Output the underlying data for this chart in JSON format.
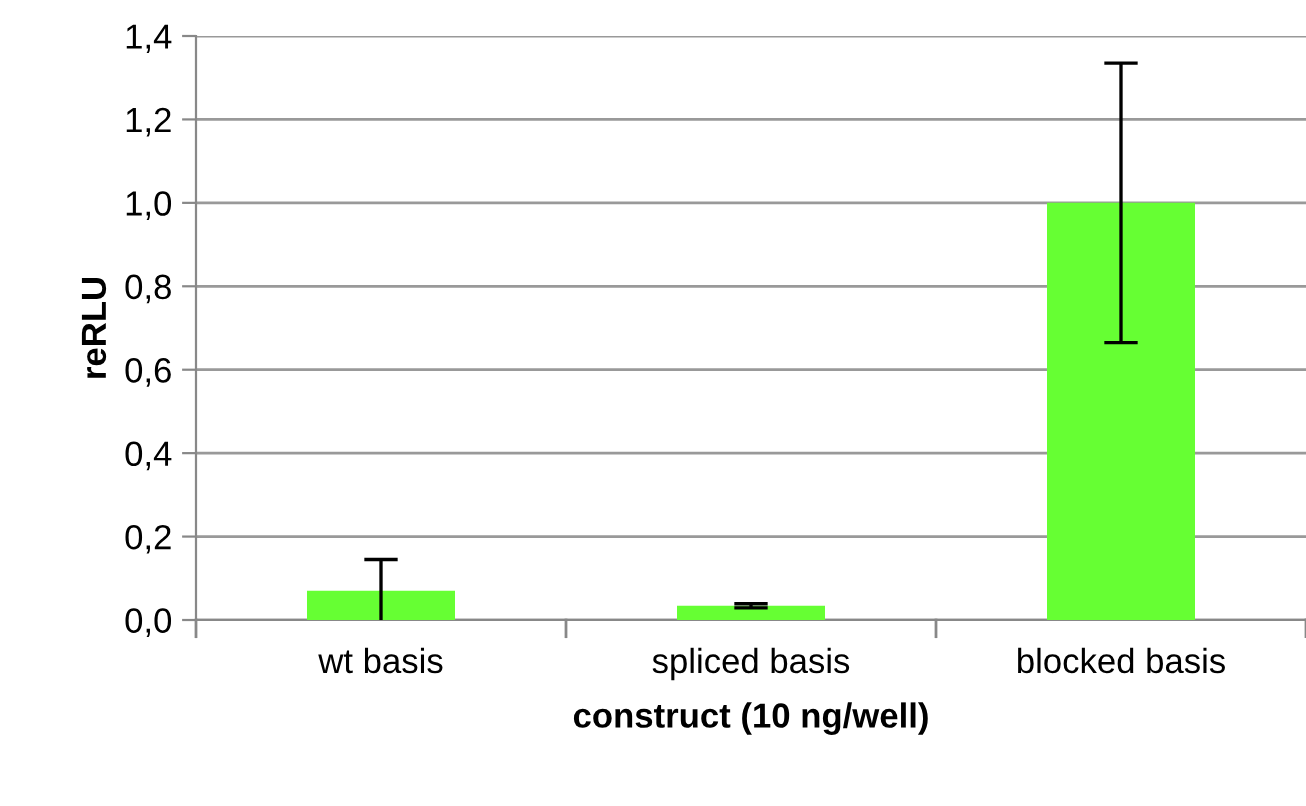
{
  "chart_data": {
    "type": "bar",
    "xlabel": "construct (10 ng/well)",
    "ylabel": "reRLU",
    "categories": [
      "wt basis",
      "spliced basis",
      "blocked basis"
    ],
    "values": [
      0.07,
      0.034,
      1.0
    ],
    "errors": [
      0.075,
      0.005,
      0.335
    ],
    "color": "#66ff33",
    "ylim": [
      0,
      1.4
    ],
    "yticks": [
      {
        "value": 0,
        "label": "0,0"
      },
      {
        "value": 0.2,
        "label": "0,2"
      },
      {
        "value": 0.4,
        "label": "0,4"
      },
      {
        "value": 0.6,
        "label": "0,6"
      },
      {
        "value": 0.8,
        "label": "0,8"
      },
      {
        "value": 1.0,
        "label": "1,0"
      },
      {
        "value": 1.2,
        "label": "1,2"
      },
      {
        "value": 1.4,
        "label": "1,4"
      }
    ],
    "grid": "y"
  }
}
